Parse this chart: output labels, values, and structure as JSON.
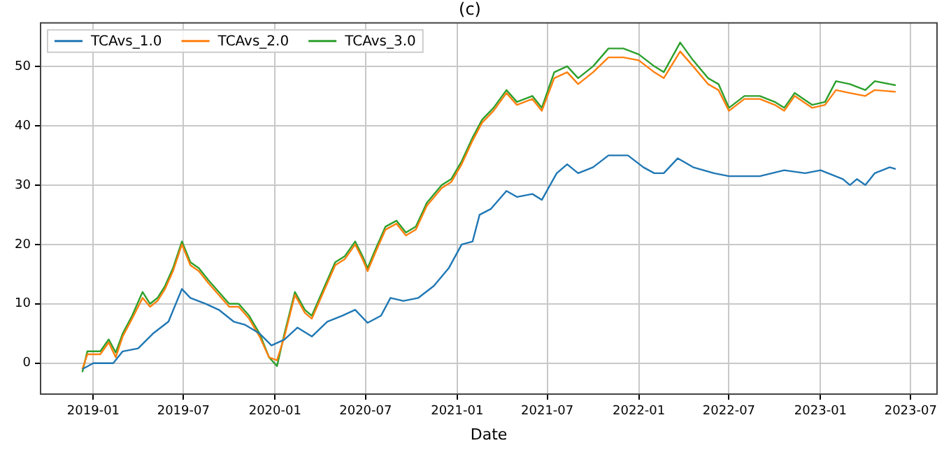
{
  "chart_data": {
    "type": "line",
    "title": "(c)",
    "xlabel": "Date",
    "legend": "top left",
    "grid": true,
    "xlim": [
      "2018-09-17",
      "2023-08-23"
    ],
    "xticks": [
      "2019-01",
      "2019-07",
      "2020-01",
      "2020-07",
      "2021-01",
      "2021-07",
      "2022-01",
      "2022-07",
      "2023-01",
      "2023-07"
    ],
    "ylim": [
      -5.2,
      57.3
    ],
    "yticks": [
      0,
      10,
      20,
      30,
      40,
      50
    ],
    "series": [
      {
        "name": "TCAvs_1.0",
        "color": "#1f77b4",
        "x": [
          "2018-12-10",
          "2019-01-01",
          "2019-01-20",
          "2019-02-10",
          "2019-03-01",
          "2019-04-01",
          "2019-05-01",
          "2019-06-01",
          "2019-06-28",
          "2019-07-15",
          "2019-08-15",
          "2019-09-10",
          "2019-10-10",
          "2019-11-01",
          "2019-12-01",
          "2019-12-25",
          "2020-01-20",
          "2020-02-15",
          "2020-03-15",
          "2020-04-15",
          "2020-05-15",
          "2020-06-10",
          "2020-07-05",
          "2020-08-01",
          "2020-08-20",
          "2020-09-15",
          "2020-10-15",
          "2020-11-15",
          "2020-12-15",
          "2021-01-10",
          "2021-02-01",
          "2021-02-15",
          "2021-03-10",
          "2021-04-10",
          "2021-05-01",
          "2021-06-01",
          "2021-06-20",
          "2021-07-20",
          "2021-08-10",
          "2021-09-01",
          "2021-10-01",
          "2021-11-01",
          "2021-12-10",
          "2022-01-10",
          "2022-02-01",
          "2022-02-20",
          "2022-03-20",
          "2022-04-20",
          "2022-06-01",
          "2022-07-01",
          "2022-09-01",
          "2022-10-20",
          "2022-12-01",
          "2023-01-01",
          "2023-02-15",
          "2023-03-01",
          "2023-03-15",
          "2023-04-01",
          "2023-04-20",
          "2023-05-20",
          "2023-06-01"
        ],
        "values": [
          -1,
          0,
          0,
          0,
          2,
          2.5,
          5,
          7,
          12.5,
          11,
          10,
          9,
          7,
          6.5,
          5,
          3,
          4,
          6,
          4.5,
          7,
          8,
          9,
          6.8,
          8,
          11,
          10.5,
          11,
          13,
          16,
          20,
          20.5,
          25,
          26,
          29,
          28,
          28.5,
          27.5,
          32,
          33.5,
          32,
          33,
          35,
          35,
          33,
          32,
          32,
          34.5,
          33,
          32,
          31.5,
          31.5,
          32.5,
          32,
          32.5,
          31,
          30,
          31,
          30,
          32,
          33,
          32.7
        ]
      },
      {
        "name": "TCAvs_2.0",
        "color": "#ff7f0e",
        "x": [
          "2018-12-10",
          "2018-12-20",
          "2019-01-15",
          "2019-02-01",
          "2019-02-15",
          "2019-03-01",
          "2019-03-20",
          "2019-04-10",
          "2019-04-25",
          "2019-05-10",
          "2019-05-25",
          "2019-06-10",
          "2019-06-28",
          "2019-07-15",
          "2019-08-01",
          "2019-08-20",
          "2019-09-10",
          "2019-10-01",
          "2019-10-20",
          "2019-11-10",
          "2019-12-01",
          "2019-12-20",
          "2020-01-05",
          "2020-01-20",
          "2020-02-10",
          "2020-03-01",
          "2020-03-15",
          "2020-04-10",
          "2020-05-01",
          "2020-05-20",
          "2020-06-10",
          "2020-06-25",
          "2020-07-05",
          "2020-07-20",
          "2020-08-10",
          "2020-09-01",
          "2020-09-20",
          "2020-10-10",
          "2020-11-01",
          "2020-12-01",
          "2020-12-20",
          "2021-01-10",
          "2021-02-01",
          "2021-02-20",
          "2021-03-15",
          "2021-04-10",
          "2021-05-01",
          "2021-06-01",
          "2021-06-20",
          "2021-07-15",
          "2021-08-10",
          "2021-09-01",
          "2021-10-01",
          "2021-11-01",
          "2021-12-01",
          "2022-01-01",
          "2022-02-01",
          "2022-02-20",
          "2022-03-25",
          "2022-04-20",
          "2022-05-20",
          "2022-06-10",
          "2022-07-01",
          "2022-08-01",
          "2022-09-01",
          "2022-10-01",
          "2022-10-20",
          "2022-11-10",
          "2022-12-15",
          "2023-01-10",
          "2023-02-01",
          "2023-03-01",
          "2023-04-01",
          "2023-04-20",
          "2023-06-01"
        ],
        "values": [
          -1,
          1.5,
          1.5,
          3.5,
          1,
          4.5,
          7.5,
          11,
          9.5,
          10.5,
          12.5,
          15.5,
          20,
          16.5,
          15.5,
          13.5,
          11.5,
          9.5,
          9.5,
          7.5,
          4.5,
          1,
          0.5,
          4.5,
          11.5,
          8.5,
          7.5,
          12.5,
          16.5,
          17.5,
          20,
          17.5,
          15.5,
          18.5,
          22.5,
          23.5,
          21.5,
          22.5,
          26.5,
          29.5,
          30.5,
          33.5,
          37.5,
          40.5,
          42.5,
          45.5,
          43.5,
          44.5,
          42.5,
          48,
          49,
          47,
          49,
          51.5,
          51.5,
          51,
          49,
          48,
          52.5,
          50,
          47,
          46,
          42.5,
          44.5,
          44.5,
          43.5,
          42.5,
          45,
          43,
          43.5,
          46,
          45.5,
          45,
          46,
          45.7
        ]
      },
      {
        "name": "TCAvs_3.0",
        "color": "#2ca02c",
        "x": [
          "2018-12-10",
          "2018-12-20",
          "2019-01-15",
          "2019-02-01",
          "2019-02-15",
          "2019-03-01",
          "2019-03-20",
          "2019-04-10",
          "2019-04-25",
          "2019-05-10",
          "2019-05-25",
          "2019-06-10",
          "2019-06-28",
          "2019-07-15",
          "2019-08-01",
          "2019-08-20",
          "2019-09-10",
          "2019-10-01",
          "2019-10-20",
          "2019-11-10",
          "2019-12-01",
          "2019-12-20",
          "2020-01-05",
          "2020-01-20",
          "2020-02-10",
          "2020-03-01",
          "2020-03-15",
          "2020-04-10",
          "2020-05-01",
          "2020-05-20",
          "2020-06-10",
          "2020-06-25",
          "2020-07-05",
          "2020-07-20",
          "2020-08-10",
          "2020-09-01",
          "2020-09-20",
          "2020-10-10",
          "2020-11-01",
          "2020-12-01",
          "2020-12-20",
          "2021-01-10",
          "2021-02-01",
          "2021-02-20",
          "2021-03-15",
          "2021-04-10",
          "2021-05-01",
          "2021-06-01",
          "2021-06-20",
          "2021-07-15",
          "2021-08-10",
          "2021-09-01",
          "2021-10-01",
          "2021-11-01",
          "2021-12-01",
          "2022-01-01",
          "2022-02-01",
          "2022-02-20",
          "2022-03-25",
          "2022-04-20",
          "2022-05-20",
          "2022-06-10",
          "2022-07-01",
          "2022-08-01",
          "2022-09-01",
          "2022-10-01",
          "2022-10-20",
          "2022-11-10",
          "2022-12-15",
          "2023-01-10",
          "2023-02-01",
          "2023-03-01",
          "2023-04-01",
          "2023-04-20",
          "2023-06-01"
        ],
        "values": [
          -1.5,
          2,
          2,
          4,
          1.8,
          5,
          8,
          12,
          10,
          11,
          13,
          16,
          20.5,
          17,
          16,
          14,
          12,
          10,
          10,
          8,
          5,
          1,
          -0.5,
          5,
          12,
          9,
          8,
          13,
          17,
          18,
          20.5,
          18,
          16,
          19,
          23,
          24,
          22,
          23,
          27,
          30,
          31,
          34,
          38,
          41,
          43,
          46,
          44,
          45,
          43,
          49,
          50,
          48,
          50,
          53,
          53,
          52,
          50,
          49,
          54,
          51,
          48,
          47,
          43,
          45,
          45,
          44,
          43,
          45.5,
          43.5,
          44,
          47.5,
          47,
          46,
          47.5,
          46.8
        ]
      }
    ]
  }
}
